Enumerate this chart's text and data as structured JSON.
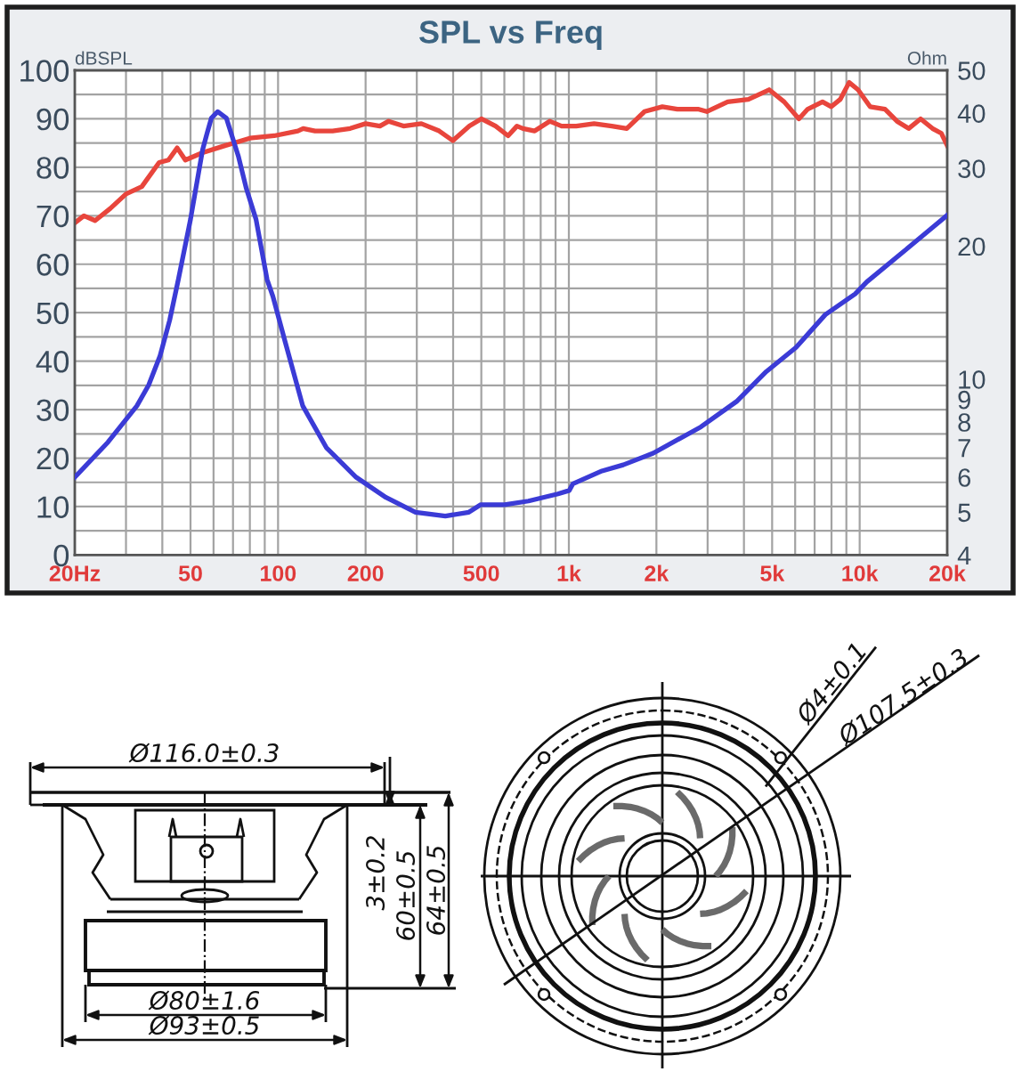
{
  "chart_data": [
    {
      "type": "line",
      "title": "SPL vs Freq",
      "ylabel": "Ohm",
      "y2label": "dBSPL",
      "log": "xy",
      "grid": true,
      "xlim": [
        20,
        20000
      ],
      "xticks": [
        {
          "value": 20,
          "label": "20Hz"
        },
        {
          "value": 30,
          "label": null
        },
        {
          "value": 40,
          "label": null
        },
        50,
        {
          "value": 60,
          "label": null
        },
        {
          "value": 70,
          "label": null
        },
        {
          "value": 80,
          "label": null
        },
        {
          "value": 90,
          "label": null
        },
        100,
        200,
        {
          "value": 300,
          "label": null
        },
        {
          "value": 400,
          "label": null
        },
        500,
        {
          "value": 600,
          "label": null
        },
        {
          "value": 700,
          "label": null
        },
        {
          "value": 800,
          "label": null
        },
        {
          "value": 900,
          "label": null
        },
        {
          "value": 1000,
          "label": "1k"
        },
        {
          "value": 2000,
          "label": "2k"
        },
        {
          "value": 3000,
          "label": null
        },
        {
          "value": 4000,
          "label": null
        },
        {
          "value": 5000,
          "label": "5k"
        },
        {
          "value": 6000,
          "label": null
        },
        {
          "value": 7000,
          "label": null
        },
        {
          "value": 8000,
          "label": null
        },
        {
          "value": 9000,
          "label": null
        },
        {
          "value": 10000,
          "label": "10k"
        },
        {
          "value": 20000,
          "label": "20k"
        }
      ],
      "ylim": [
        4,
        50
      ],
      "yticks": [
        4,
        5,
        6,
        7,
        8,
        9,
        10,
        20,
        30,
        40,
        50
      ],
      "y2lim": [
        0,
        100
      ],
      "y2ticks": [
        0,
        {
          "value": 5,
          "label": null
        },
        10,
        {
          "value": 15,
          "label": null
        },
        20,
        {
          "value": 25,
          "label": null
        },
        30,
        {
          "value": 35,
          "label": null
        },
        40,
        {
          "value": 45,
          "label": null
        },
        50,
        {
          "value": 55,
          "label": null
        },
        60,
        {
          "value": 65,
          "label": null
        },
        70,
        {
          "value": 75,
          "label": null
        },
        80,
        {
          "value": 85,
          "label": null
        },
        90,
        {
          "value": 95,
          "label": null
        },
        100
      ],
      "series": [
        {
          "color": "#e8453c",
          "axis": "y2",
          "x": [
            20,
            21.5,
            23.5,
            26.5,
            30,
            34,
            39,
            42,
            45,
            48,
            55,
            66,
            80,
            97,
            117,
            122,
            134,
            154,
            177,
            200,
            224,
            240,
            270,
            311,
            358,
            399,
            455,
            500,
            560,
            618,
            663,
            695,
            763,
            859,
            944,
            1060,
            1221,
            1405,
            1582,
            1821,
            2096,
            2360,
            2779,
            2980,
            3516,
            4142,
            4884,
            5500,
            6180,
            6628,
            7450,
            7990,
            8570,
            9200,
            9870,
            10860,
            12220,
            13440,
            14740,
            16200,
            17800,
            19100,
            20000
          ],
          "values": [
            68.5,
            70,
            69,
            71.5,
            74.5,
            76,
            81,
            81.5,
            84,
            81.5,
            83,
            84.5,
            86,
            86.5,
            87.5,
            88,
            87.5,
            87.5,
            88,
            89,
            88.5,
            89.5,
            88.5,
            89,
            87.5,
            85.5,
            88.5,
            90,
            88.5,
            86.5,
            88.5,
            88,
            87.5,
            89.5,
            88.5,
            88.5,
            89,
            88.5,
            88,
            91.5,
            92.5,
            92,
            92,
            91.5,
            93.5,
            94,
            96,
            93.5,
            90,
            92,
            93.5,
            92.5,
            94,
            97.5,
            96,
            92.5,
            92,
            89.5,
            88,
            90,
            88,
            87,
            84.5
          ]
        },
        {
          "color": "#3b3bd6",
          "x": [
            20,
            26,
            32.7,
            35.9,
            39.3,
            42.4,
            45.4,
            50,
            55,
            57,
            59,
            62,
            66.4,
            73,
            77.8,
            84,
            91.7,
            96,
            105.6,
            121.6,
            146.6,
            185.6,
            235,
            297,
            376,
            453,
            498,
            601,
            726,
            917,
            1003,
            1033,
            1300,
            1538,
            1950,
            2845,
            3770,
            4770,
            6040,
            7620,
            9650,
            10580,
            14100,
            20000
          ],
          "values": [
            6.0,
            7.2,
            8.7,
            9.7,
            11.3,
            13.6,
            16.8,
            23,
            33,
            36,
            39,
            40.3,
            39,
            32,
            27,
            23,
            16.8,
            15.4,
            12.2,
            8.7,
            7.0,
            6.0,
            5.4,
            5.0,
            4.9,
            5.0,
            5.2,
            5.2,
            5.3,
            5.5,
            5.6,
            5.8,
            6.2,
            6.4,
            6.8,
            7.8,
            8.9,
            10.4,
            11.8,
            14,
            15.6,
            16.6,
            19.4,
            23.5
          ]
        }
      ]
    },
    {
      "type": "other",
      "annotations": [
        "Ø116.0±0.3",
        "3±0.2",
        "60±0.5",
        "64±0.5",
        "Ø80±1.6",
        "Ø93±0.5",
        "Ø4±0.1",
        "Ø107.5±0.3"
      ]
    }
  ]
}
